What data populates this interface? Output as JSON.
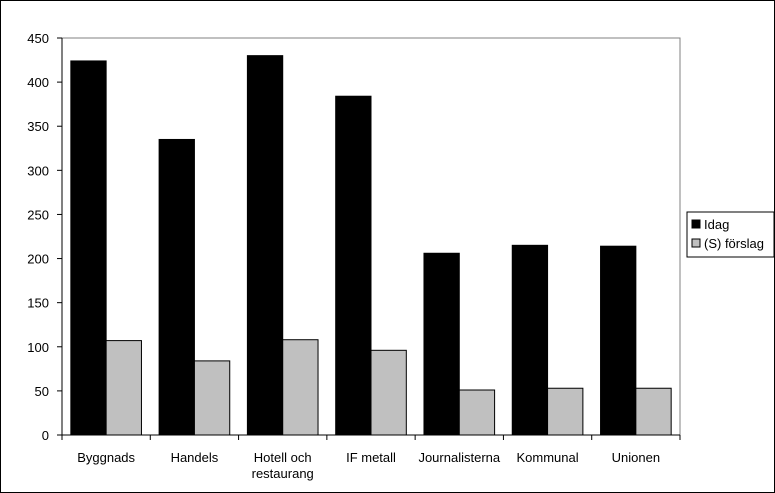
{
  "chart_data": {
    "type": "bar",
    "categories": [
      [
        "Byggnads"
      ],
      [
        "Handels"
      ],
      [
        "Hotell och",
        "restaurang"
      ],
      [
        "IF metall"
      ],
      [
        "Journalisterna"
      ],
      [
        "Kommunal"
      ],
      [
        "Unionen"
      ]
    ],
    "series": [
      {
        "name": "Idag",
        "values": [
          424,
          335,
          430,
          384,
          206,
          215,
          214
        ],
        "color": "#000000"
      },
      {
        "name": "(S) förslag",
        "values": [
          107,
          84,
          108,
          96,
          51,
          53,
          53
        ],
        "color": "#c0c0c0"
      }
    ],
    "yticks": [
      0,
      50,
      100,
      150,
      200,
      250,
      300,
      350,
      400,
      450
    ],
    "ylim": [
      0,
      450
    ],
    "title": "",
    "xlabel": "",
    "ylabel": "",
    "grid": false,
    "legend_position": "right"
  }
}
